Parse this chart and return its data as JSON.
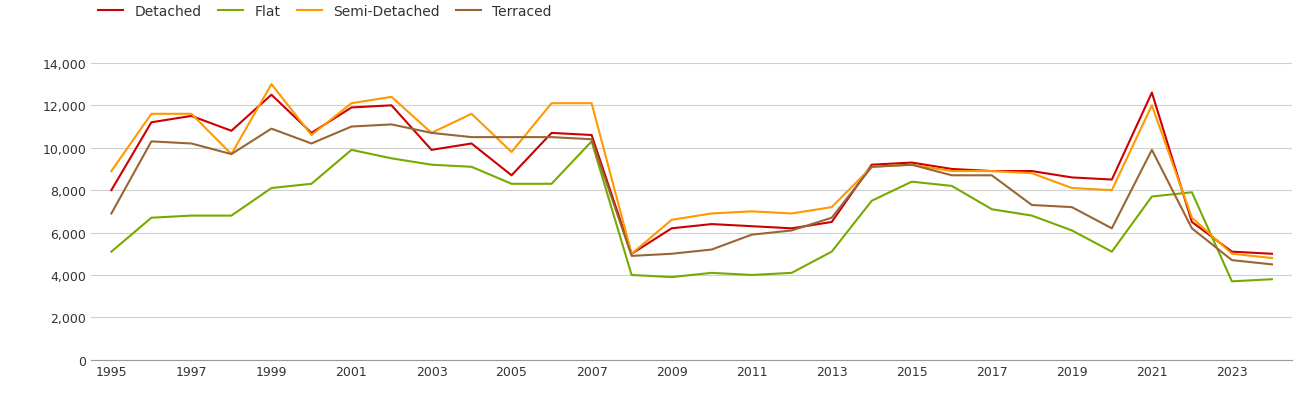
{
  "years": [
    1995,
    1996,
    1997,
    1998,
    1999,
    2000,
    2001,
    2002,
    2003,
    2004,
    2005,
    2006,
    2007,
    2008,
    2009,
    2010,
    2011,
    2012,
    2013,
    2014,
    2015,
    2016,
    2017,
    2018,
    2019,
    2020,
    2021,
    2022,
    2023,
    2024
  ],
  "detached": [
    8000,
    11200,
    11500,
    10800,
    12500,
    10700,
    11900,
    12000,
    9900,
    10200,
    8700,
    10700,
    10600,
    5000,
    6200,
    6400,
    6300,
    6200,
    6500,
    9200,
    9300,
    9000,
    8900,
    8900,
    8600,
    8500,
    12600,
    6500,
    5100,
    5000
  ],
  "flat": [
    5100,
    6700,
    6800,
    6800,
    8100,
    8300,
    9900,
    9500,
    9200,
    9100,
    8300,
    8300,
    10300,
    4000,
    3900,
    4100,
    4000,
    4100,
    5100,
    7500,
    8400,
    8200,
    7100,
    6800,
    6100,
    5100,
    7700,
    7900,
    3700,
    3800
  ],
  "semi_detached": [
    8900,
    11600,
    11600,
    9700,
    13000,
    10600,
    12100,
    12400,
    10700,
    11600,
    9800,
    12100,
    12100,
    5000,
    6600,
    6900,
    7000,
    6900,
    7200,
    9100,
    9200,
    8900,
    8900,
    8800,
    8100,
    8000,
    12000,
    6700,
    5000,
    4800
  ],
  "terraced": [
    6900,
    10300,
    10200,
    9700,
    10900,
    10200,
    11000,
    11100,
    10700,
    10500,
    10500,
    10500,
    10400,
    4900,
    5000,
    5200,
    5900,
    6100,
    6700,
    9100,
    9200,
    8700,
    8700,
    7300,
    7200,
    6200,
    9900,
    6200,
    4700,
    4500
  ],
  "colors": {
    "detached": "#cc0000",
    "flat": "#77aa00",
    "semi_detached": "#ff9900",
    "terraced": "#996633"
  },
  "ylim": [
    0,
    14500
  ],
  "yticks": [
    0,
    2000,
    4000,
    6000,
    8000,
    10000,
    12000,
    14000
  ],
  "ytick_labels": [
    "0",
    "2,000",
    "4,000",
    "6,000",
    "8,000",
    "10,000",
    "12,000",
    "14,000"
  ],
  "background_color": "#ffffff",
  "grid_color": "#d0d0d0",
  "line_width": 1.5,
  "fig_width": 13.05,
  "fig_height": 4.1,
  "dpi": 100
}
